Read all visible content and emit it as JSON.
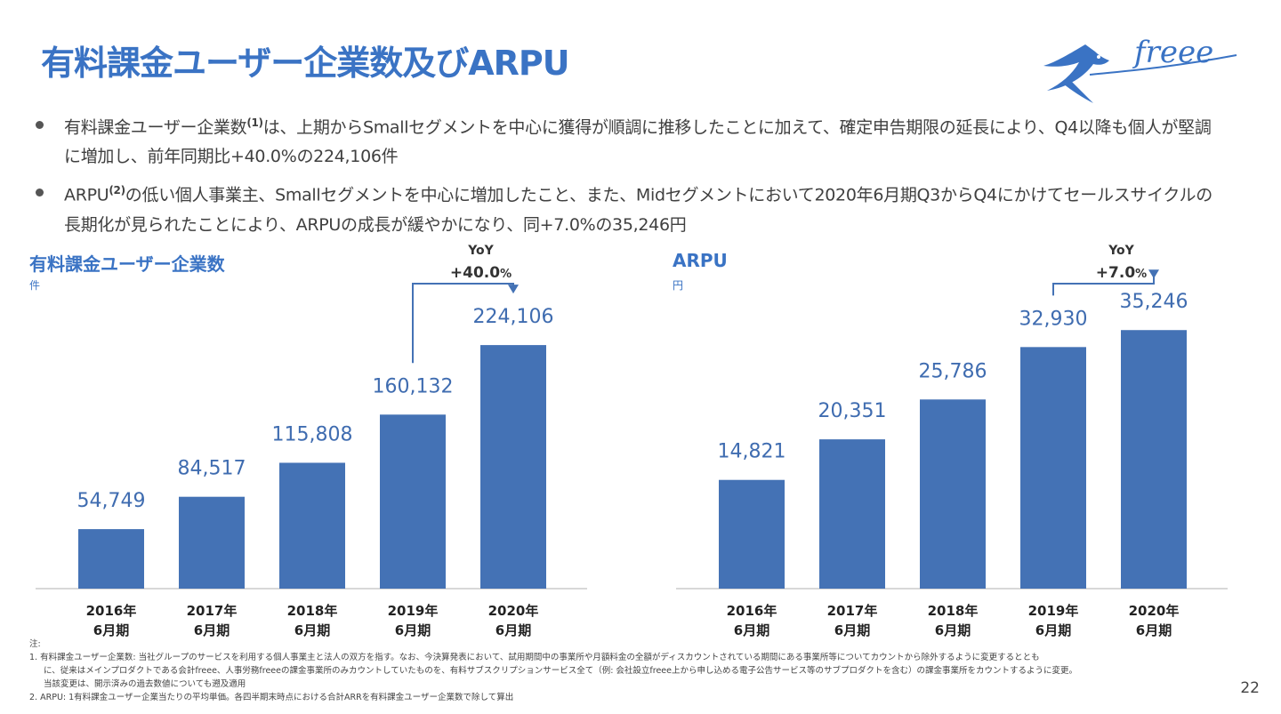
{
  "slide": {
    "title": "有料課金ユーザー企業数及びARPU",
    "logo_text": "freee",
    "page_number": "22"
  },
  "bullets": [
    {
      "pre": "有料課金ユーザー企業数",
      "sup": "(1)",
      "post": "は、上期からSmallセグメントを中心に獲得が順調に推移したことに加えて、確定申告期限の延長により、Q4以降も個人が堅調に増加し、前年同期比+40.0%の224,106件"
    },
    {
      "pre": "ARPU",
      "sup": "(2)",
      "post": "の低い個人事業主、Smallセグメントを中心に増加したこと、また、Midセグメントにおいて2020年6月期Q3からQ4にかけてセールスサイクルの長期化が見られたことにより、ARPUの成長が緩やかになり、同+7.0%の35,246円"
    }
  ],
  "chart_data": [
    {
      "type": "bar",
      "title": "有料課金ユーザー企業数",
      "unit": "件",
      "categories": [
        "2016年|6月期",
        "2017年|6月期",
        "2018年|6月期",
        "2019年|6月期",
        "2020年|6月期"
      ],
      "values": [
        54749,
        84517,
        115808,
        160132,
        224106
      ],
      "value_labels": [
        "54,749",
        "84,517",
        "115,808",
        "160,132",
        "224,106"
      ],
      "yoy": {
        "label": "YoY",
        "value": "+40.0",
        "suffix": "%",
        "from_index": 3,
        "to_index": 4
      },
      "ylim": [
        0,
        270000
      ],
      "xlabel": "",
      "ylabel": ""
    },
    {
      "type": "bar",
      "title": "ARPU",
      "unit": "円",
      "categories": [
        "2016年|6月期",
        "2017年|6月期",
        "2018年|6月期",
        "2019年|6月期",
        "2020年|6月期"
      ],
      "values": [
        14821,
        20351,
        25786,
        32930,
        35246
      ],
      "value_labels": [
        "14,821",
        "20,351",
        "25,786",
        "32,930",
        "35,246"
      ],
      "yoy": {
        "label": "YoY",
        "value": "+7.0",
        "suffix": "%",
        "from_index": 3,
        "to_index": 4
      },
      "ylim": [
        0,
        40000
      ],
      "xlabel": "",
      "ylabel": ""
    }
  ],
  "notes": {
    "heading": "注:",
    "items": [
      {
        "num": "1.",
        "lines": [
          "有料課金ユーザー企業数: 当社グループのサービスを利用する個人事業主と法人の双方を指す。なお、今決算発表において、試用期間中の事業所や月額料金の全額がディスカウントされている期間にある事業所等についてカウントから除外するように変更するととも",
          "に、従来はメインプロダクトである会計freee、人事労務freeeの課金事業所のみカウントしていたものを、有料サブスクリプションサービス全て（例: 会社設立freee上から申し込める電子公告サービス等のサブプロダクトを含む）の課金事業所をカウントするように変更。",
          "当該変更は、開示済みの過去数値についても遡及適用"
        ]
      },
      {
        "num": "2.",
        "lines": [
          "ARPU: 1有料課金ユーザー企業当たりの平均単価。各四半期末時点における合計ARRを有料課金ユーザー企業数で除して算出"
        ]
      }
    ]
  },
  "colors": {
    "accent": "#3a73c4",
    "bar": "#4472b5",
    "value_label": "#3f6cb0",
    "axis_label": "#222222",
    "axis_line": "#cccccc",
    "yoy_line": "#4472b5"
  }
}
